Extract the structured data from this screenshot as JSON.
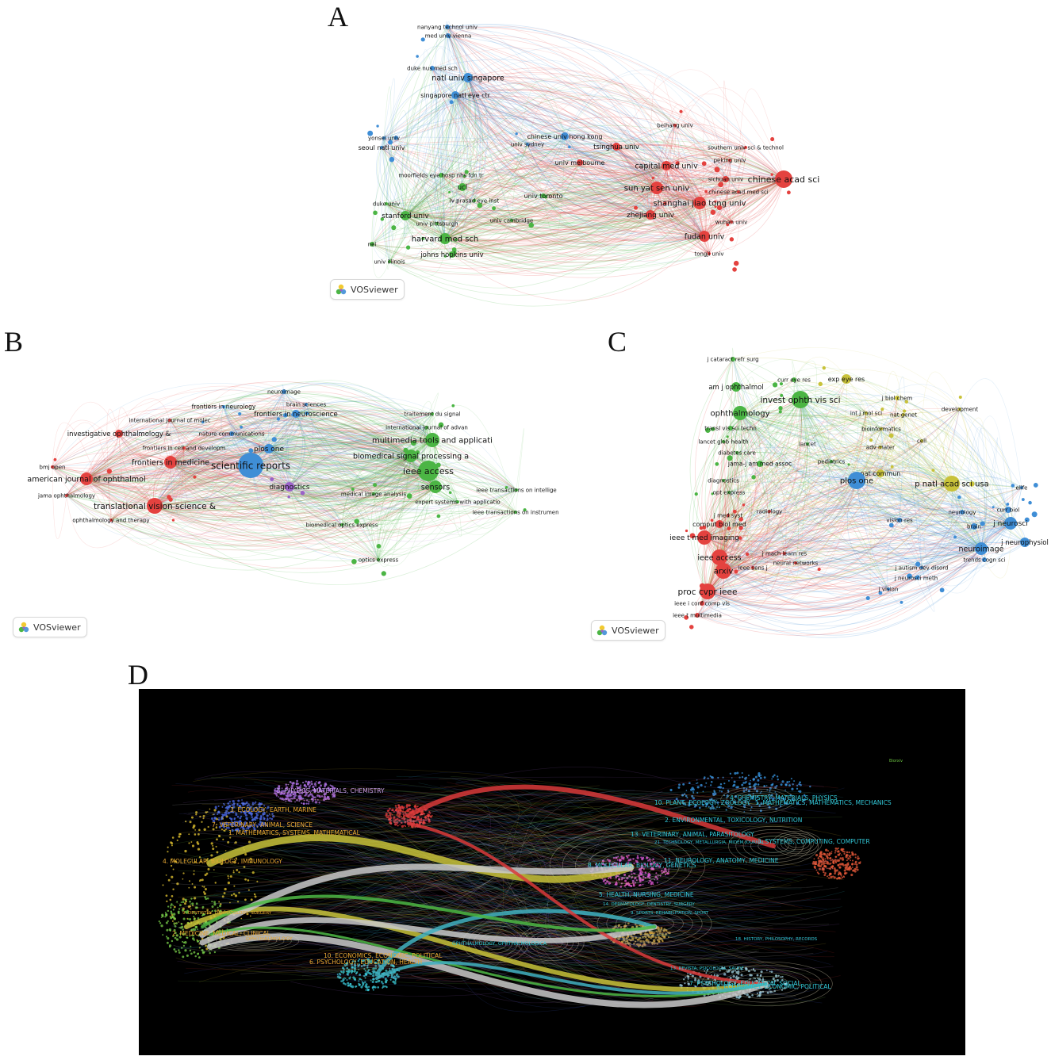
{
  "panels": {
    "a": {
      "letter": "A"
    },
    "b": {
      "letter": "B"
    },
    "c": {
      "letter": "C"
    },
    "d": {
      "letter": "D"
    }
  },
  "vosviewer_label": "VOSviewer",
  "colors": {
    "red": "#e4423f",
    "green": "#4bb544",
    "blue": "#3f8ed6",
    "yellow": "#c8c23a",
    "purple": "#9a62c8"
  },
  "network_a": {
    "nodes": [
      {
        "label": "nanyang technol univ",
        "c": "blue"
      },
      {
        "label": "med univ vienna",
        "c": "blue"
      },
      {
        "label": "duke nus med sch",
        "c": "blue"
      },
      {
        "label": "natl univ singapore",
        "c": "blue"
      },
      {
        "label": "singapore natl eye ctr",
        "c": "blue"
      },
      {
        "label": "yonsei univ",
        "c": "blue"
      },
      {
        "label": "seoul natl univ",
        "c": "blue"
      },
      {
        "label": "chinese univ hong kong",
        "c": "blue"
      },
      {
        "label": "univ sydney",
        "c": "blue"
      },
      {
        "label": "beihang univ",
        "c": "red"
      },
      {
        "label": "tsinghua univ",
        "c": "red"
      },
      {
        "label": "southern univ sci & technol",
        "c": "red"
      },
      {
        "label": "univ melbourne",
        "c": "red"
      },
      {
        "label": "peking univ",
        "c": "red"
      },
      {
        "label": "capital med univ",
        "c": "red"
      },
      {
        "label": "moorfields eye hosp nhs fdn tr",
        "c": "green"
      },
      {
        "label": "sichuan univ",
        "c": "red"
      },
      {
        "label": "chinese acad sci",
        "c": "red"
      },
      {
        "label": "chinese acad med sci",
        "c": "red"
      },
      {
        "label": "ucl",
        "c": "green"
      },
      {
        "label": "lv prasad eye inst",
        "c": "green"
      },
      {
        "label": "univ toronto",
        "c": "green"
      },
      {
        "label": "sun yat sen univ",
        "c": "red"
      },
      {
        "label": "shanghai jiao tong univ",
        "c": "red"
      },
      {
        "label": "duke univ",
        "c": "green"
      },
      {
        "label": "stanford univ",
        "c": "green"
      },
      {
        "label": "univ pittsburgh",
        "c": "green"
      },
      {
        "label": "univ cambridge",
        "c": "green"
      },
      {
        "label": "zhejiang univ",
        "c": "red"
      },
      {
        "label": "wuhan univ",
        "c": "red"
      },
      {
        "label": "harvard med sch",
        "c": "green"
      },
      {
        "label": "fudan univ",
        "c": "red"
      },
      {
        "label": "nei",
        "c": "green"
      },
      {
        "label": "johns hopkins univ",
        "c": "green"
      },
      {
        "label": "tongji univ",
        "c": "red"
      },
      {
        "label": "univ illinois",
        "c": "green"
      }
    ]
  },
  "network_b": {
    "nodes": [
      {
        "label": "neuroimage",
        "c": "blue"
      },
      {
        "label": "brain sciences",
        "c": "blue"
      },
      {
        "label": "frontiers in neurology",
        "c": "blue"
      },
      {
        "label": "frontiers in neuroscience",
        "c": "blue"
      },
      {
        "label": "traitement du signal",
        "c": "green"
      },
      {
        "label": "international journal of molec",
        "c": "red"
      },
      {
        "label": "international journal of advan",
        "c": "green"
      },
      {
        "label": "investigative ophthalmology &",
        "c": "red"
      },
      {
        "label": "nature communications",
        "c": "blue"
      },
      {
        "label": "frontiers in cell and developm",
        "c": "red"
      },
      {
        "label": "multimedia tools and applicati",
        "c": "green"
      },
      {
        "label": "plos one",
        "c": "blue"
      },
      {
        "label": "frontiers in medicine",
        "c": "red"
      },
      {
        "label": "scientific reports",
        "c": "blue"
      },
      {
        "label": "biomedical signal processing a",
        "c": "green"
      },
      {
        "label": "bmj open",
        "c": "red"
      },
      {
        "label": "ieee access",
        "c": "green"
      },
      {
        "label": "american journal of ophthalmol",
        "c": "red"
      },
      {
        "label": "diagnostics",
        "c": "purple"
      },
      {
        "label": "sensors",
        "c": "green"
      },
      {
        "label": "jama ophthalmology",
        "c": "red"
      },
      {
        "label": "ieee transactions on intellige",
        "c": "green"
      },
      {
        "label": "medical image analysis",
        "c": "green"
      },
      {
        "label": "expert systems with applicatio",
        "c": "green"
      },
      {
        "label": "translational vision science &",
        "c": "red"
      },
      {
        "label": "ieee transactions on instrumen",
        "c": "green"
      },
      {
        "label": "ophthalmology and therapy",
        "c": "red"
      },
      {
        "label": "biomedical optics express",
        "c": "green"
      },
      {
        "label": "optics express",
        "c": "green"
      }
    ]
  },
  "network_c": {
    "nodes": [
      {
        "label": "j cataract refr surg",
        "c": "green"
      },
      {
        "label": "curr eye res",
        "c": "green"
      },
      {
        "label": "exp eye res",
        "c": "yellow"
      },
      {
        "label": "am j ophthalmol",
        "c": "green"
      },
      {
        "label": "invest ophth vis sci",
        "c": "green"
      },
      {
        "label": "j biol chem",
        "c": "yellow"
      },
      {
        "label": "ophthalmology",
        "c": "green"
      },
      {
        "label": "nat genet",
        "c": "yellow"
      },
      {
        "label": "development",
        "c": "yellow"
      },
      {
        "label": "int j mol sci",
        "c": "yellow"
      },
      {
        "label": "transl vis sci techn",
        "c": "green"
      },
      {
        "label": "bioinformatics",
        "c": "yellow"
      },
      {
        "label": "cell",
        "c": "yellow"
      },
      {
        "label": "lancet glob health",
        "c": "green"
      },
      {
        "label": "lancet",
        "c": "green"
      },
      {
        "label": "diabetes care",
        "c": "green"
      },
      {
        "label": "adv mater",
        "c": "yellow"
      },
      {
        "label": "pediatrics",
        "c": "green"
      },
      {
        "label": "jama-j am med assoc",
        "c": "green"
      },
      {
        "label": "nat commun",
        "c": "yellow"
      },
      {
        "label": "plos one",
        "c": "blue"
      },
      {
        "label": "diagnostics",
        "c": "green"
      },
      {
        "label": "p natl acad sci usa",
        "c": "yellow"
      },
      {
        "label": "elife",
        "c": "blue"
      },
      {
        "label": "opt express",
        "c": "green"
      },
      {
        "label": "curr biol",
        "c": "blue"
      },
      {
        "label": "radiology",
        "c": "red"
      },
      {
        "label": "j med syst",
        "c": "red"
      },
      {
        "label": "vision res",
        "c": "blue"
      },
      {
        "label": "neurology",
        "c": "blue"
      },
      {
        "label": "j neurosci",
        "c": "blue"
      },
      {
        "label": "comput biol med",
        "c": "red"
      },
      {
        "label": "brain",
        "c": "blue"
      },
      {
        "label": "ieee t med imaging",
        "c": "red"
      },
      {
        "label": "j neurophysiol",
        "c": "blue"
      },
      {
        "label": "j mach learn res",
        "c": "red"
      },
      {
        "label": "j autism dev disord",
        "c": "blue"
      },
      {
        "label": "ieee access",
        "c": "red"
      },
      {
        "label": "neuroimage",
        "c": "blue"
      },
      {
        "label": "neural networks",
        "c": "red"
      },
      {
        "label": "ieee sens j",
        "c": "red"
      },
      {
        "label": "j neurosci meth",
        "c": "blue"
      },
      {
        "label": "trends cogn sci",
        "c": "blue"
      },
      {
        "label": "arxiv",
        "c": "red"
      },
      {
        "label": "j vision",
        "c": "blue"
      },
      {
        "label": "proc cvpr ieee",
        "c": "red"
      },
      {
        "label": "ieee i conf comp vis",
        "c": "red"
      },
      {
        "label": "ieee t multimedia",
        "c": "red"
      }
    ]
  },
  "overlay_d": {
    "corner_text": "Biorxiv",
    "citing_clusters": [
      {
        "label": "5. PHYSICS, MATERIALS, CHEMISTRY"
      },
      {
        "label": "3. ECOLOGY, EARTH, MARINE"
      },
      {
        "label": "7. VETERINARY, ANIMAL, SCIENCE"
      },
      {
        "label": "1. MATHEMATICS, SYSTEMS, MATHEMATICAL"
      },
      {
        "label": "4. MOLECULAR, BIOLOGY, IMMUNOLOGY"
      },
      {
        "label": "9. DENTISTRY, DERMATOLOGY, SURGERY"
      },
      {
        "label": "2. MEDICINE, MEDICAL, CLINICAL"
      },
      {
        "label": "OPHTHALMOLOGY"
      },
      {
        "label": "10. ECONOMICS, ECONOMIC, POLITICAL"
      },
      {
        "label": "6. PSYCHOLOGY, EDUCATION, HEALTH"
      }
    ],
    "cited_clusters": [
      {
        "label": "4. CHEMISTRY, MATERIALS, PHYSICS"
      },
      {
        "label": "10. PLANT, ECOLOGY, ZOOLOGY"
      },
      {
        "label": "1. MATHEMATICS, MATHEMATICS, MECHANICS"
      },
      {
        "label": "2. ENVIRONMENTAL, TOXICOLOGY, NUTRITION"
      },
      {
        "label": "13. VETERINARY, ANIMAL, PARASITOLOGY"
      },
      {
        "label": "3. SYSTEMS, COMPUTING, COMPUTER"
      },
      {
        "label": "21. TECHNOLOGY, METALLURGIA, MIDEM JOURNAL"
      },
      {
        "label": "8. MOLECULAR, BIOLOGY, GENETICS"
      },
      {
        "label": "11. NEUROLOGY, ANATOMY, MEDICINE"
      },
      {
        "label": "5. HEALTH, NURSING, MEDICINE"
      },
      {
        "label": "14. DERMATOLOGY, DENTISTRY, SURGERY"
      },
      {
        "label": "9. SPORTS, REHABILITATION, SPORT"
      },
      {
        "label": "18. HISTORY, PHILOSOPHY, RECORDS"
      },
      {
        "label": "13. REVISTA, PSICOLOGIA, SAUDE"
      },
      {
        "label": "7. PSYCHOLOGY, EDUCATION, SOCIAL"
      },
      {
        "label": "6. ECONOMICS, ECONOMIC, POLITICAL"
      },
      {
        "label": "OPHTHALMOLOGY, OPHTHALMOLOGICA"
      }
    ]
  }
}
